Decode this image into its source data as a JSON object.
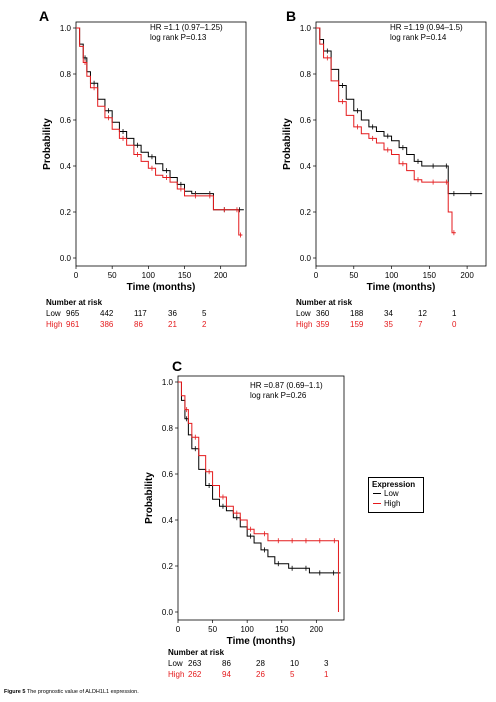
{
  "colors": {
    "low": "#000000",
    "high": "#e41a1c"
  },
  "caption": {
    "bold": "Figure 5",
    "text": " The prognostic value of ALDH1L1 expression."
  },
  "legend": {
    "title": "Expression",
    "items": [
      {
        "label": "Low",
        "color": "#000000"
      },
      {
        "label": "High",
        "color": "#e41a1c"
      }
    ]
  },
  "chart_data": [
    {
      "panel": "A",
      "type": "line",
      "xlabel": "Time (months)",
      "ylabel": "Probability",
      "xlim": [
        0,
        235
      ],
      "ylim": [
        0,
        1.0
      ],
      "xticks": [
        0,
        50,
        100,
        150,
        200
      ],
      "yticks": [
        0.0,
        0.2,
        0.4,
        0.6,
        0.8,
        1.0
      ],
      "annotation": [
        "HR =1.1 (0.97–1.25)",
        "log rank P=0.13"
      ],
      "series": [
        {
          "name": "Low",
          "color": "#000000",
          "x": [
            0,
            5,
            10,
            15,
            20,
            30,
            40,
            50,
            60,
            70,
            80,
            90,
            100,
            110,
            120,
            130,
            140,
            150,
            160,
            170,
            180,
            190,
            200,
            210,
            220,
            232
          ],
          "y": [
            1.0,
            0.93,
            0.87,
            0.81,
            0.76,
            0.69,
            0.64,
            0.59,
            0.55,
            0.52,
            0.49,
            0.46,
            0.44,
            0.41,
            0.38,
            0.35,
            0.32,
            0.29,
            0.28,
            0.28,
            0.28,
            0.21,
            0.21,
            0.21,
            0.21,
            0.21
          ]
        },
        {
          "name": "High",
          "color": "#e41a1c",
          "x": [
            0,
            5,
            10,
            15,
            20,
            30,
            40,
            50,
            60,
            70,
            80,
            90,
            100,
            110,
            120,
            130,
            140,
            150,
            160,
            170,
            180,
            190,
            200,
            210,
            220,
            225,
            225,
            230
          ],
          "y": [
            1.0,
            0.92,
            0.85,
            0.79,
            0.74,
            0.66,
            0.61,
            0.56,
            0.52,
            0.49,
            0.45,
            0.42,
            0.39,
            0.36,
            0.35,
            0.33,
            0.3,
            0.27,
            0.27,
            0.27,
            0.27,
            0.21,
            0.21,
            0.21,
            0.21,
            0.21,
            0.1,
            0.1
          ]
        }
      ],
      "risk": {
        "header": "Number at risk",
        "times": [
          0,
          50,
          100,
          150,
          200
        ],
        "rows": [
          {
            "label": "Low",
            "values": [
              "965",
              "442",
              "117",
              "36",
              "5"
            ]
          },
          {
            "label": "High",
            "values": [
              "961",
              "386",
              "86",
              "21",
              "2"
            ]
          }
        ]
      }
    },
    {
      "panel": "B",
      "type": "line",
      "xlabel": "Time (months)",
      "ylabel": "Probability",
      "xlim": [
        0,
        225
      ],
      "ylim": [
        0,
        1.0
      ],
      "xticks": [
        0,
        50,
        100,
        150,
        200
      ],
      "yticks": [
        0.0,
        0.2,
        0.4,
        0.6,
        0.8,
        1.0
      ],
      "annotation": [
        "HR =1.19 (0.94–1.5)",
        "log rank P=0.14"
      ],
      "series": [
        {
          "name": "Low",
          "color": "#000000",
          "x": [
            0,
            5,
            10,
            20,
            30,
            40,
            50,
            60,
            70,
            80,
            90,
            100,
            110,
            120,
            130,
            140,
            150,
            160,
            170,
            175,
            175,
            190,
            200,
            210,
            220
          ],
          "y": [
            1.0,
            0.95,
            0.9,
            0.82,
            0.75,
            0.69,
            0.64,
            0.6,
            0.57,
            0.55,
            0.53,
            0.51,
            0.48,
            0.45,
            0.42,
            0.4,
            0.4,
            0.4,
            0.4,
            0.4,
            0.28,
            0.28,
            0.28,
            0.28,
            0.28
          ]
        },
        {
          "name": "High",
          "color": "#e41a1c",
          "x": [
            0,
            5,
            10,
            20,
            30,
            40,
            50,
            60,
            70,
            80,
            90,
            100,
            110,
            120,
            130,
            140,
            150,
            160,
            170,
            175,
            180,
            185
          ],
          "y": [
            1.0,
            0.93,
            0.87,
            0.77,
            0.68,
            0.62,
            0.57,
            0.54,
            0.52,
            0.5,
            0.47,
            0.45,
            0.41,
            0.38,
            0.34,
            0.33,
            0.33,
            0.33,
            0.33,
            0.2,
            0.11,
            0.11
          ]
        }
      ],
      "risk": {
        "header": "Number at risk",
        "times": [
          0,
          50,
          100,
          150,
          200
        ],
        "rows": [
          {
            "label": "Low",
            "values": [
              "360",
              "188",
              "34",
              "12",
              "1"
            ]
          },
          {
            "label": "High",
            "values": [
              "359",
              "159",
              "35",
              "7",
              "0"
            ]
          }
        ]
      }
    },
    {
      "panel": "C",
      "type": "line",
      "xlabel": "Time (months)",
      "ylabel": "Probability",
      "xlim": [
        0,
        240
      ],
      "ylim": [
        0,
        1.0
      ],
      "xticks": [
        0,
        50,
        100,
        150,
        200
      ],
      "yticks": [
        0.0,
        0.2,
        0.4,
        0.6,
        0.8,
        1.0
      ],
      "annotation": [
        "HR =0.87 (0.69–1.1)",
        "log rank P=0.26"
      ],
      "series": [
        {
          "name": "Low",
          "color": "#000000",
          "x": [
            0,
            5,
            10,
            15,
            20,
            30,
            40,
            50,
            60,
            70,
            80,
            90,
            100,
            110,
            120,
            130,
            140,
            150,
            160,
            170,
            180,
            190,
            200,
            210,
            220,
            230,
            235
          ],
          "y": [
            1.0,
            0.92,
            0.84,
            0.77,
            0.71,
            0.62,
            0.55,
            0.49,
            0.46,
            0.44,
            0.41,
            0.37,
            0.33,
            0.3,
            0.27,
            0.24,
            0.21,
            0.21,
            0.19,
            0.19,
            0.19,
            0.17,
            0.17,
            0.17,
            0.17,
            0.17,
            0.17
          ]
        },
        {
          "name": "High",
          "color": "#e41a1c",
          "x": [
            0,
            5,
            10,
            15,
            20,
            30,
            40,
            50,
            60,
            70,
            80,
            90,
            100,
            110,
            120,
            130,
            140,
            150,
            160,
            170,
            180,
            190,
            200,
            210,
            220,
            232,
            232
          ],
          "y": [
            1.0,
            0.94,
            0.88,
            0.82,
            0.76,
            0.68,
            0.61,
            0.55,
            0.5,
            0.46,
            0.43,
            0.4,
            0.36,
            0.34,
            0.34,
            0.31,
            0.31,
            0.31,
            0.31,
            0.31,
            0.31,
            0.31,
            0.31,
            0.31,
            0.31,
            0.31,
            0.0
          ]
        }
      ],
      "risk": {
        "header": "Number at risk",
        "times": [
          0,
          50,
          100,
          150,
          200
        ],
        "rows": [
          {
            "label": "Low",
            "values": [
              "263",
              "86",
              "28",
              "10",
              "3"
            ]
          },
          {
            "label": "High",
            "values": [
              "262",
              "94",
              "26",
              "5",
              "1"
            ]
          }
        ]
      }
    }
  ]
}
